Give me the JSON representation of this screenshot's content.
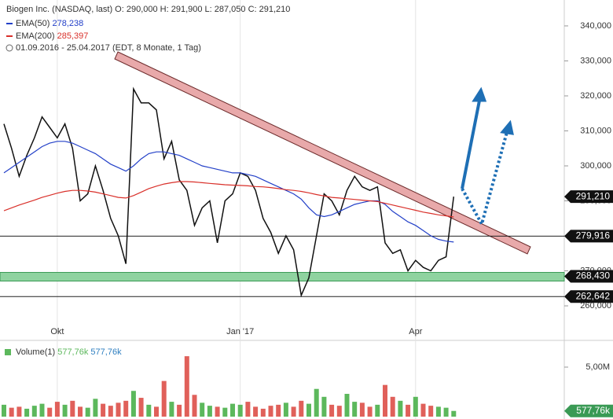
{
  "chart_data": {
    "type": "line",
    "title": "Biogen Inc. (NASDAQ, last)",
    "quote": "O: 290,000 H: 291,900 L: 287,050 C: 291,210",
    "period": "01.09.2016 - 25.04.2017",
    "period_note": "(EDT, 8 Monate, 1 Tag)",
    "categories": [
      null,
      null,
      null,
      null,
      null,
      null,
      null,
      "Okt",
      null,
      null,
      null,
      null,
      null,
      null,
      null,
      null,
      null,
      null,
      null,
      null,
      null,
      null,
      null,
      null,
      null,
      null,
      null,
      null,
      null,
      null,
      null,
      "Jan '17",
      null,
      null,
      null,
      null,
      null,
      null,
      null,
      null,
      null,
      null,
      null,
      null,
      null,
      null,
      null,
      null,
      null,
      null,
      null,
      null,
      null,
      null,
      "Apr",
      null,
      null,
      null,
      null,
      null
    ],
    "series": [
      {
        "name": "Biogen Inc.",
        "color": "#111111",
        "values": [
          312000,
          305000,
          297000,
          303000,
          308000,
          314000,
          311000,
          308000,
          312000,
          305000,
          290000,
          292000,
          300000,
          293000,
          285000,
          280000,
          272000,
          322000,
          318000,
          318000,
          316000,
          302000,
          307000,
          296000,
          293000,
          283000,
          288000,
          290000,
          278000,
          290000,
          292000,
          298000,
          297000,
          293000,
          285000,
          281000,
          275000,
          280000,
          276000,
          263000,
          268000,
          280000,
          292000,
          290000,
          286000,
          293000,
          297000,
          294000,
          293000,
          294000,
          278000,
          275000,
          276000,
          270000,
          273000,
          271000,
          270000,
          273000,
          274000,
          291210
        ]
      },
      {
        "name": "EMA(50)",
        "color": "#2340c8",
        "last_label": "278,238",
        "values": [
          298000,
          299500,
          301000,
          302500,
          304000,
          305500,
          306500,
          307000,
          307000,
          306500,
          305500,
          304500,
          303500,
          302000,
          300500,
          299500,
          298500,
          300000,
          302000,
          303500,
          304000,
          304000,
          303500,
          303000,
          302000,
          301000,
          300000,
          299500,
          299000,
          298500,
          298000,
          298000,
          297500,
          297000,
          296000,
          295000,
          294000,
          293000,
          292000,
          290500,
          288000,
          286000,
          285500,
          286000,
          287000,
          288000,
          289000,
          289500,
          290000,
          290000,
          289000,
          287000,
          285500,
          284000,
          283000,
          281500,
          280000,
          279000,
          278500,
          278238
        ]
      },
      {
        "name": "EMA(200)",
        "color": "#d9302a",
        "last_label": "285,397",
        "values": [
          287200,
          288000,
          288800,
          289500,
          290200,
          291000,
          291600,
          292200,
          292700,
          293000,
          293000,
          292800,
          292500,
          292000,
          291500,
          291000,
          290800,
          291500,
          292500,
          293500,
          294200,
          294800,
          295200,
          295500,
          295500,
          295400,
          295200,
          295000,
          294800,
          294600,
          294500,
          294400,
          294300,
          294100,
          294000,
          293800,
          293500,
          293200,
          293000,
          292700,
          292300,
          291800,
          291400,
          291000,
          290800,
          290600,
          290400,
          290200,
          290000,
          289800,
          289300,
          288800,
          288300,
          287800,
          287300,
          286800,
          286400,
          286000,
          285700,
          285397
        ]
      }
    ],
    "ylim": [
      250800,
      347400
    ],
    "yticks": [
      {
        "value": 340000,
        "label": "340,000"
      },
      {
        "value": 330000,
        "label": "330,000"
      },
      {
        "value": 320000,
        "label": "320,000"
      },
      {
        "value": 310000,
        "label": "310,000"
      },
      {
        "value": 300000,
        "label": "300,000"
      },
      {
        "value": 290000,
        "label": "290,000"
      },
      {
        "value": 280000,
        "label": "280,000"
      },
      {
        "value": 270000,
        "label": "270,000"
      },
      {
        "value": 260000,
        "label": "260,000"
      }
    ],
    "levels": [
      {
        "value": 291210,
        "label": "291,210"
      },
      {
        "value": 279916,
        "label": "279,916"
      },
      {
        "value": 268430,
        "label": "268,430"
      },
      {
        "value": 262642,
        "label": "262,642"
      }
    ],
    "volume": {
      "name": "Volume(1)",
      "labels": [
        "577,76k",
        "577,76k"
      ],
      "up_color": "#5cb85c",
      "down_color": "#e0605a",
      "values": [
        1.2,
        0.9,
        1.0,
        0.8,
        1.1,
        1.3,
        0.9,
        1.5,
        1.2,
        1.6,
        1.0,
        0.9,
        1.8,
        1.3,
        1.1,
        1.4,
        1.6,
        2.6,
        1.9,
        1.2,
        1.0,
        3.6,
        1.5,
        1.2,
        6.1,
        2.2,
        1.4,
        1.1,
        1.0,
        0.9,
        1.3,
        1.2,
        1.5,
        1.0,
        0.8,
        1.1,
        1.2,
        1.4,
        1.0,
        1.6,
        1.3,
        2.8,
        2.0,
        1.2,
        1.1,
        2.3,
        1.5,
        1.4,
        1.0,
        1.2,
        3.2,
        2.0,
        1.6,
        1.2,
        2.0,
        1.3,
        1.1,
        1.0,
        0.9,
        0.57776
      ],
      "value_labels_last": "577,76k",
      "ylim": [
        0,
        7.3
      ],
      "yticks": [
        {
          "value": 5,
          "label": "5,00M"
        }
      ]
    }
  }
}
